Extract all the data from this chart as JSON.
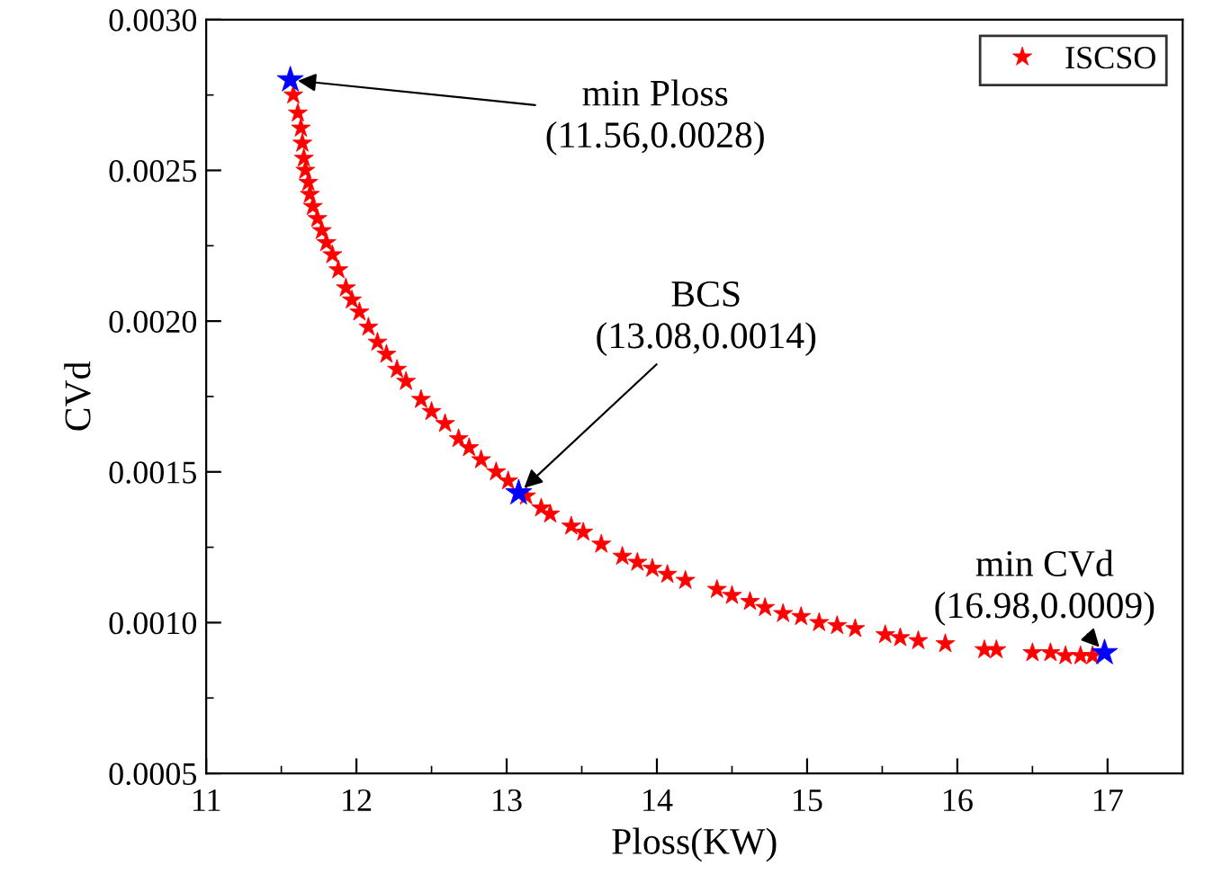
{
  "chart_data": {
    "type": "scatter",
    "xlabel": "Ploss(KW)",
    "ylabel": "CVd",
    "xlim": [
      11,
      17.5
    ],
    "xticks": [
      11,
      {
        "value": 11.5,
        "label": null
      },
      12,
      {
        "value": 12.5,
        "label": null
      },
      13,
      {
        "value": 13.5,
        "label": null
      },
      14,
      {
        "value": 14.5,
        "label": null
      },
      15,
      {
        "value": 15.5,
        "label": null
      },
      16,
      {
        "value": 16.5,
        "label": null
      },
      17
    ],
    "ylim": [
      0.0005,
      0.003
    ],
    "yticks": [
      {
        "value": 0.0005,
        "label": "0.0005"
      },
      {
        "value": 0.00075,
        "label": null
      },
      {
        "value": 0.001,
        "label": "0.0010"
      },
      {
        "value": 0.00125,
        "label": null
      },
      {
        "value": 0.0015,
        "label": "0.0015"
      },
      {
        "value": 0.00175,
        "label": null
      },
      {
        "value": 0.002,
        "label": "0.0020"
      },
      {
        "value": 0.00225,
        "label": null
      },
      {
        "value": 0.0025,
        "label": "0.0025"
      },
      {
        "value": 0.00275,
        "label": null
      },
      {
        "value": 0.003,
        "label": "0.0030"
      }
    ],
    "marker": "star",
    "grid": false,
    "legend": "top right",
    "series": [
      {
        "name": "ISCSO",
        "color": "#ff0000",
        "x": [
          11.58,
          11.61,
          11.63,
          11.64,
          11.65,
          11.66,
          11.68,
          11.69,
          11.71,
          11.74,
          11.77,
          11.8,
          11.84,
          11.88,
          11.93,
          11.97,
          12.02,
          12.08,
          12.14,
          12.2,
          12.27,
          12.33,
          12.43,
          12.5,
          12.59,
          12.68,
          12.75,
          12.83,
          12.93,
          13.01,
          13.13,
          13.23,
          13.29,
          13.43,
          13.51,
          13.63,
          13.77,
          13.87,
          13.97,
          14.07,
          14.19,
          14.4,
          14.5,
          14.62,
          14.72,
          14.84,
          14.96,
          15.08,
          15.2,
          15.32,
          15.52,
          15.62,
          15.74,
          15.92,
          16.18,
          16.26,
          16.5,
          16.62,
          16.72,
          16.82,
          16.9
        ],
        "values": [
          0.00275,
          0.00269,
          0.00264,
          0.00259,
          0.00254,
          0.0025,
          0.00246,
          0.00242,
          0.00238,
          0.00234,
          0.0023,
          0.00226,
          0.00222,
          0.00217,
          0.00211,
          0.00207,
          0.00203,
          0.00198,
          0.00193,
          0.00189,
          0.00184,
          0.0018,
          0.00174,
          0.0017,
          0.00166,
          0.00161,
          0.00158,
          0.00154,
          0.0015,
          0.00147,
          0.00142,
          0.00138,
          0.00136,
          0.00132,
          0.0013,
          0.00126,
          0.00122,
          0.0012,
          0.00118,
          0.00116,
          0.00114,
          0.00111,
          0.00109,
          0.00107,
          0.00105,
          0.00103,
          0.00102,
          0.001,
          0.00099,
          0.00098,
          0.00096,
          0.00095,
          0.00094,
          0.00093,
          0.00091,
          0.00091,
          0.0009,
          0.0009,
          0.00089,
          0.00089,
          0.00089
        ]
      },
      {
        "color": "#0000ff",
        "x": [
          11.56,
          13.08,
          16.98
        ],
        "values": [
          0.0028,
          0.00143,
          0.0009
        ]
      }
    ],
    "annotations": [
      {
        "text": "min Ploss\n(11.56,0.0028)",
        "x": 11.56,
        "y": 0.0028
      },
      {
        "text": "BCS\n(13.08,0.0014)",
        "x": 13.08,
        "y": 0.00143
      },
      {
        "text": "min CVd\n(16.98,0.0009)",
        "x": 16.98,
        "y": 0.0009
      }
    ]
  }
}
